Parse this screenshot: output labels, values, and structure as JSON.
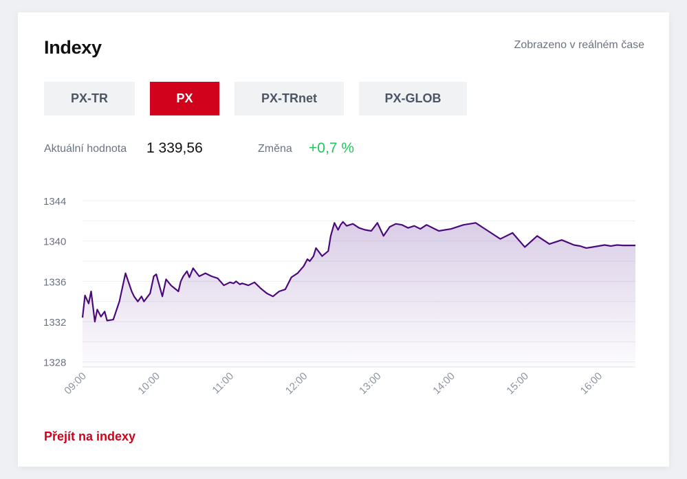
{
  "header": {
    "title": "Indexy",
    "realtime_note": "Zobrazeno v reálném čase"
  },
  "tabs": [
    {
      "label": "PX-TR",
      "active": false
    },
    {
      "label": "PX",
      "active": true
    },
    {
      "label": "PX-TRnet",
      "active": false
    },
    {
      "label": "PX-GLOB",
      "active": false
    }
  ],
  "stats": {
    "current_label": "Aktuální hodnota",
    "current_value": "1 339,56",
    "change_label": "Změna",
    "change_value": "+0,7 %"
  },
  "colors": {
    "accent": "#d1021b",
    "line": "#4b0a7a",
    "positive": "#22c55e"
  },
  "chart_data": {
    "type": "area",
    "title": "",
    "xlabel": "",
    "ylabel": "",
    "x_ticks": [
      "09:00",
      "10:00",
      "11:00",
      "12:00",
      "13:00",
      "14:00",
      "15:00",
      "16:00"
    ],
    "y_ticks": [
      "1344",
      "1340",
      "1336",
      "1332",
      "1328"
    ],
    "ylim": [
      1327.5,
      1345.5
    ],
    "xlim": [
      "09:00",
      "16:30"
    ],
    "grid": "horizontal",
    "series": [
      {
        "x": [
          "09:00",
          "09:02",
          "09:05",
          "09:07",
          "09:10",
          "09:12",
          "09:15",
          "09:18",
          "09:20",
          "09:25",
          "09:30",
          "09:35",
          "09:40",
          "09:42",
          "09:45",
          "09:48",
          "09:50",
          "09:55",
          "09:58",
          "10:00",
          "10:05",
          "10:08",
          "10:12",
          "10:15",
          "10:18",
          "10:20",
          "10:22",
          "10:25",
          "10:27",
          "10:30",
          "10:35",
          "10:40",
          "10:45",
          "10:50",
          "10:55",
          "11:00",
          "11:03",
          "11:05",
          "11:08",
          "11:10",
          "11:15",
          "11:20",
          "11:25",
          "11:30",
          "11:35",
          "11:40",
          "11:45",
          "11:50",
          "11:55",
          "12:00",
          "12:03",
          "12:05",
          "12:08",
          "12:10",
          "12:15",
          "12:20",
          "12:22",
          "12:25",
          "12:28",
          "12:30",
          "12:32",
          "12:35",
          "12:40",
          "12:45",
          "12:50",
          "12:55",
          "13:00",
          "13:05",
          "13:10",
          "13:15",
          "13:20",
          "13:25",
          "13:30",
          "13:35",
          "13:40",
          "13:45",
          "13:50",
          "14:00",
          "14:10",
          "14:20",
          "14:30",
          "14:40",
          "14:50",
          "15:00",
          "15:10",
          "15:20",
          "15:30",
          "15:40",
          "15:45",
          "15:50",
          "15:55",
          "16:00",
          "16:05",
          "16:10",
          "16:15",
          "16:20",
          "16:25",
          "16:30"
        ],
        "y": [
          1332.4,
          1334.6,
          1333.8,
          1335.0,
          1332.0,
          1333.2,
          1332.5,
          1333.0,
          1332.1,
          1332.2,
          1334.0,
          1336.8,
          1335.0,
          1334.5,
          1334.0,
          1334.5,
          1334.0,
          1334.8,
          1336.5,
          1336.7,
          1334.5,
          1336.2,
          1335.6,
          1335.3,
          1335.0,
          1336.0,
          1336.5,
          1337.0,
          1336.4,
          1337.3,
          1336.5,
          1336.8,
          1336.5,
          1336.3,
          1335.6,
          1335.9,
          1335.8,
          1336.0,
          1335.7,
          1335.8,
          1335.6,
          1335.9,
          1335.3,
          1334.8,
          1334.5,
          1335.0,
          1335.2,
          1336.4,
          1336.8,
          1337.5,
          1338.2,
          1338.0,
          1338.5,
          1339.3,
          1338.5,
          1339.0,
          1340.5,
          1341.8,
          1341.1,
          1341.6,
          1341.9,
          1341.5,
          1341.7,
          1341.3,
          1341.1,
          1341.0,
          1341.8,
          1340.5,
          1341.4,
          1341.7,
          1341.6,
          1341.3,
          1341.5,
          1341.2,
          1341.6,
          1341.3,
          1341.0,
          1341.2,
          1341.6,
          1341.8,
          1341.0,
          1340.2,
          1340.8,
          1339.4,
          1340.5,
          1339.7,
          1340.1,
          1339.6,
          1339.5,
          1339.3,
          1339.4,
          1339.5,
          1339.6,
          1339.5,
          1339.6,
          1339.56,
          1339.56,
          1339.56
        ]
      }
    ]
  },
  "footer": {
    "link_label": "Přejít na indexy"
  }
}
